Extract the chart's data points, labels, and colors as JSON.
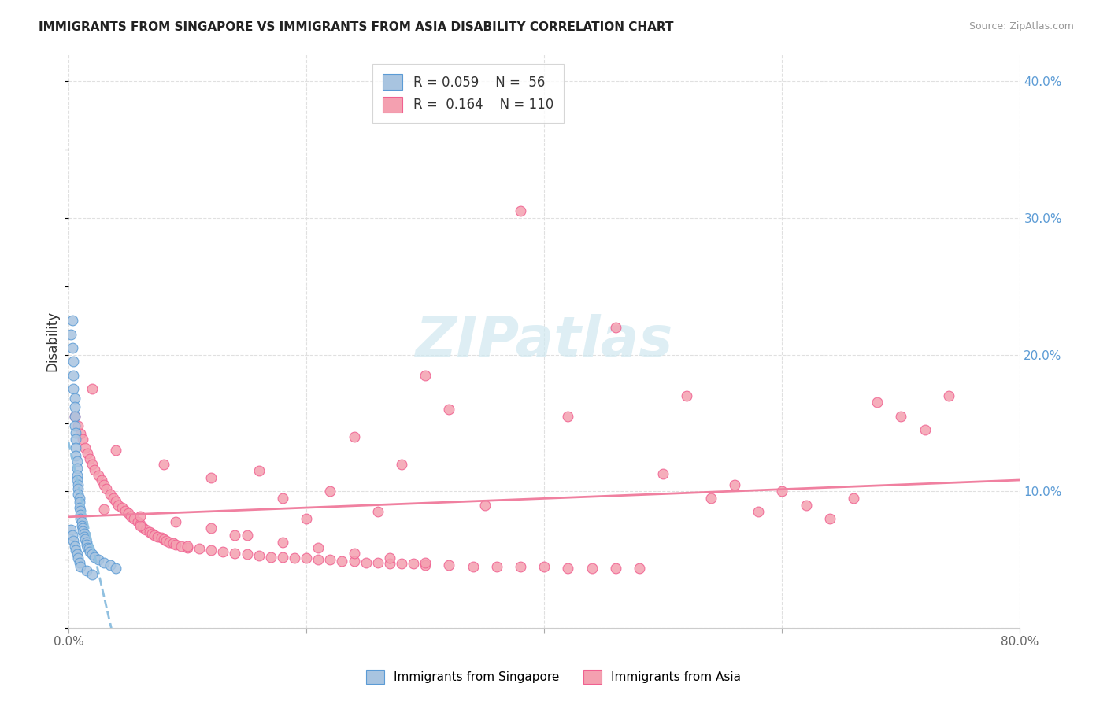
{
  "title": "IMMIGRANTS FROM SINGAPORE VS IMMIGRANTS FROM ASIA DISABILITY CORRELATION CHART",
  "source": "Source: ZipAtlas.com",
  "ylabel": "Disability",
  "xlim": [
    0,
    0.8
  ],
  "ylim": [
    0,
    0.42
  ],
  "yticks_right": [
    0.0,
    0.1,
    0.2,
    0.3,
    0.4
  ],
  "yticklabels_right": [
    "",
    "10.0%",
    "20.0%",
    "30.0%",
    "40.0%"
  ],
  "legend_r1": "R = 0.059",
  "legend_n1": "N =  56",
  "legend_r2": "R =  0.164",
  "legend_n2": "N = 110",
  "color_singapore": "#a8c4e0",
  "color_asia": "#f4a0b0",
  "color_singapore_edge": "#5b9bd5",
  "color_asia_edge": "#f06090",
  "color_singapore_trend": "#90c0e0",
  "color_asia_trend": "#f080a0",
  "watermark": "ZIPatlas",
  "watermark_color": "#d0e8f0",
  "background_color": "#ffffff",
  "grid_color": "#e0e0e0",
  "singapore_x": [
    0.002,
    0.003,
    0.003,
    0.004,
    0.004,
    0.004,
    0.005,
    0.005,
    0.005,
    0.005,
    0.006,
    0.006,
    0.006,
    0.006,
    0.007,
    0.007,
    0.007,
    0.007,
    0.008,
    0.008,
    0.008,
    0.009,
    0.009,
    0.009,
    0.01,
    0.01,
    0.01,
    0.011,
    0.011,
    0.012,
    0.012,
    0.013,
    0.013,
    0.014,
    0.015,
    0.015,
    0.016,
    0.017,
    0.018,
    0.02,
    0.022,
    0.025,
    0.03,
    0.035,
    0.04,
    0.002,
    0.003,
    0.004,
    0.005,
    0.006,
    0.007,
    0.008,
    0.009,
    0.01,
    0.015,
    0.02
  ],
  "singapore_y": [
    0.215,
    0.225,
    0.205,
    0.195,
    0.185,
    0.175,
    0.168,
    0.162,
    0.155,
    0.148,
    0.143,
    0.138,
    0.132,
    0.126,
    0.122,
    0.117,
    0.112,
    0.108,
    0.105,
    0.102,
    0.098,
    0.095,
    0.092,
    0.088,
    0.086,
    0.083,
    0.08,
    0.078,
    0.075,
    0.073,
    0.071,
    0.069,
    0.067,
    0.065,
    0.063,
    0.061,
    0.059,
    0.058,
    0.056,
    0.054,
    0.052,
    0.05,
    0.048,
    0.046,
    0.044,
    0.072,
    0.068,
    0.064,
    0.06,
    0.057,
    0.054,
    0.051,
    0.048,
    0.045,
    0.042,
    0.039
  ],
  "asia_x": [
    0.005,
    0.008,
    0.01,
    0.012,
    0.014,
    0.016,
    0.018,
    0.02,
    0.022,
    0.025,
    0.028,
    0.03,
    0.032,
    0.035,
    0.038,
    0.04,
    0.042,
    0.045,
    0.048,
    0.05,
    0.052,
    0.055,
    0.058,
    0.06,
    0.062,
    0.065,
    0.068,
    0.07,
    0.072,
    0.075,
    0.078,
    0.08,
    0.082,
    0.085,
    0.088,
    0.09,
    0.095,
    0.1,
    0.11,
    0.12,
    0.13,
    0.14,
    0.15,
    0.16,
    0.17,
    0.18,
    0.19,
    0.2,
    0.21,
    0.22,
    0.23,
    0.24,
    0.25,
    0.26,
    0.27,
    0.28,
    0.29,
    0.3,
    0.32,
    0.34,
    0.36,
    0.38,
    0.4,
    0.42,
    0.44,
    0.46,
    0.48,
    0.5,
    0.52,
    0.54,
    0.56,
    0.58,
    0.6,
    0.62,
    0.64,
    0.66,
    0.68,
    0.7,
    0.72,
    0.74,
    0.02,
    0.04,
    0.06,
    0.08,
    0.1,
    0.12,
    0.14,
    0.16,
    0.18,
    0.2,
    0.22,
    0.24,
    0.26,
    0.28,
    0.3,
    0.32,
    0.35,
    0.38,
    0.42,
    0.46,
    0.03,
    0.06,
    0.09,
    0.12,
    0.15,
    0.18,
    0.21,
    0.24,
    0.27,
    0.3
  ],
  "asia_y": [
    0.155,
    0.148,
    0.142,
    0.138,
    0.132,
    0.128,
    0.124,
    0.12,
    0.116,
    0.112,
    0.108,
    0.105,
    0.102,
    0.098,
    0.095,
    0.093,
    0.09,
    0.088,
    0.086,
    0.084,
    0.082,
    0.08,
    0.078,
    0.076,
    0.074,
    0.072,
    0.07,
    0.069,
    0.068,
    0.067,
    0.066,
    0.065,
    0.064,
    0.063,
    0.062,
    0.061,
    0.06,
    0.059,
    0.058,
    0.057,
    0.056,
    0.055,
    0.054,
    0.053,
    0.052,
    0.052,
    0.051,
    0.051,
    0.05,
    0.05,
    0.049,
    0.049,
    0.048,
    0.048,
    0.047,
    0.047,
    0.047,
    0.046,
    0.046,
    0.045,
    0.045,
    0.045,
    0.045,
    0.044,
    0.044,
    0.044,
    0.044,
    0.113,
    0.17,
    0.095,
    0.105,
    0.085,
    0.1,
    0.09,
    0.08,
    0.095,
    0.165,
    0.155,
    0.145,
    0.17,
    0.175,
    0.13,
    0.075,
    0.12,
    0.06,
    0.11,
    0.068,
    0.115,
    0.095,
    0.08,
    0.1,
    0.14,
    0.085,
    0.12,
    0.185,
    0.16,
    0.09,
    0.305,
    0.155,
    0.22,
    0.087,
    0.082,
    0.078,
    0.073,
    0.068,
    0.063,
    0.059,
    0.055,
    0.051,
    0.048
  ]
}
